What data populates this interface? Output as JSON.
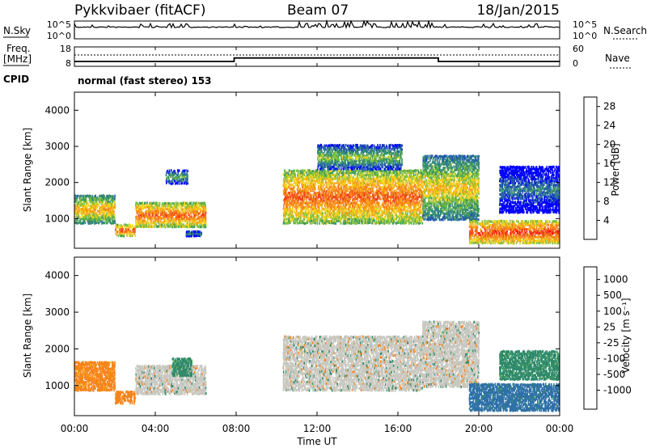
{
  "header": {
    "station": "Pykkvibaer (fitACF)",
    "beam": "Beam 07",
    "date": "18/Jan/2015"
  },
  "noise_panel": {
    "left_label": "N.Sky",
    "left_ticks": [
      "10^5",
      "10^0"
    ],
    "right_ticks": [
      "10^5",
      "10^0"
    ],
    "right_label": "N.Search"
  },
  "freq_panel": {
    "left_label_1": "Freq.",
    "left_label_2": "[MHz]",
    "left_ticks": [
      "18",
      "8"
    ],
    "right_ticks": [
      "60",
      "0"
    ],
    "right_label": "Nave",
    "cpid_label": "CPID",
    "cpid_text": "normal (fast stereo) 153"
  },
  "power_panel": {
    "ylabel": "Slant Range [km]",
    "yticks": [
      "4000",
      "3000",
      "2000",
      "1000"
    ],
    "colorbar_title": "Power [dB]",
    "colorbar_ticks": [
      "28",
      "24",
      "20",
      "16",
      "12",
      "8",
      "4"
    ],
    "colors": [
      "#0000ff",
      "#1f4fb0",
      "#2e7d8e",
      "#3f9a5c",
      "#7fbf3f",
      "#f2d21a",
      "#f6a21c",
      "#f57a1a",
      "#f0401c",
      "#ff0000"
    ]
  },
  "velocity_panel": {
    "ylabel": "Slant Range [km]",
    "yticks": [
      "4000",
      "3000",
      "2000",
      "1000"
    ],
    "colorbar_title": "Velocity [m s⁻¹]",
    "colorbar_ticks": [
      "1000",
      "500",
      "100",
      "25",
      "-25",
      "-100",
      "-500",
      "-1000"
    ],
    "colors": [
      "#2a47b0",
      "#2f70a8",
      "#2f8a6a",
      "#5fb05a",
      "#c8c8c0",
      "#f2b21c",
      "#f5841a",
      "#f04c1c",
      "#ff0000"
    ],
    "ground_scatter": "#c8c8c0"
  },
  "xaxis": {
    "label": "Time UT",
    "ticks": [
      "00:00",
      "04:00",
      "08:00",
      "12:00",
      "16:00",
      "20:00",
      "00:00"
    ]
  },
  "chart_data": {
    "type": "heatmap",
    "x_hours": [
      0,
      24
    ],
    "y_slant_range_km": [
      180,
      4500
    ],
    "frequency_mhz": [
      {
        "from_h": 0,
        "to_h": 7.9,
        "value": 10.5
      },
      {
        "from_h": 7.9,
        "to_h": 18.0,
        "value": 12.3
      },
      {
        "from_h": 18.0,
        "to_h": 24,
        "value": 10.5
      }
    ],
    "power_regions": [
      {
        "t0": 0.0,
        "t1": 2.0,
        "r0": 900,
        "r1": 1700,
        "level_db": 22
      },
      {
        "t0": 2.0,
        "t1": 3.0,
        "r0": 550,
        "r1": 900,
        "level_db": 26
      },
      {
        "t0": 3.0,
        "t1": 6.5,
        "r0": 800,
        "r1": 1500,
        "level_db": 26
      },
      {
        "t0": 4.5,
        "t1": 5.6,
        "r0": 2000,
        "r1": 2400,
        "level_db": 14
      },
      {
        "t0": 5.5,
        "t1": 6.3,
        "r0": 550,
        "r1": 700,
        "level_db": 12
      },
      {
        "t0": 10.3,
        "t1": 17.2,
        "r0": 900,
        "r1": 2400,
        "level_db": 26
      },
      {
        "t0": 12.0,
        "t1": 16.2,
        "r0": 2400,
        "r1": 3100,
        "level_db": 16
      },
      {
        "t0": 17.2,
        "t1": 20.0,
        "r0": 1000,
        "r1": 2800,
        "level_db": 20
      },
      {
        "t0": 19.5,
        "t1": 24,
        "r0": 350,
        "r1": 1000,
        "level_db": 28
      },
      {
        "t0": 21.0,
        "t1": 24,
        "r0": 1200,
        "r1": 2500,
        "level_db": 10
      }
    ],
    "velocity_regions": [
      {
        "t0": 0.0,
        "t1": 2.0,
        "r0": 900,
        "r1": 1700,
        "velocity": -100
      },
      {
        "t0": 2.0,
        "t1": 3.0,
        "r0": 550,
        "r1": 900,
        "velocity": -200
      },
      {
        "t0": 3.0,
        "t1": 6.5,
        "r0": 800,
        "r1": 1600,
        "velocity": 0
      },
      {
        "t0": 4.8,
        "t1": 5.8,
        "r0": 1300,
        "r1": 1800,
        "velocity": 100
      },
      {
        "t0": 10.3,
        "t1": 17.2,
        "r0": 900,
        "r1": 2400,
        "velocity": 0
      },
      {
        "t0": 17.2,
        "t1": 20.0,
        "r0": 1000,
        "r1": 2800,
        "velocity": 0
      },
      {
        "t0": 19.5,
        "t1": 24,
        "r0": 350,
        "r1": 1100,
        "velocity": 500
      },
      {
        "t0": 21.0,
        "t1": 24,
        "r0": 1200,
        "r1": 2000,
        "velocity": 100
      }
    ]
  }
}
